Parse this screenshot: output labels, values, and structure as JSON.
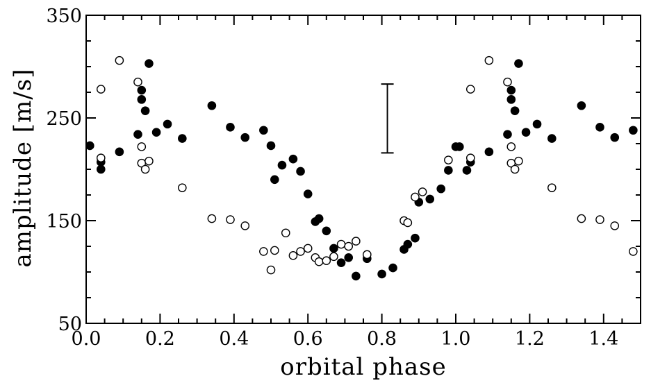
{
  "chart_data": {
    "type": "scatter",
    "title": "",
    "xlabel": "orbital phase",
    "ylabel": "amplitude [m/s]",
    "xlim": [
      0.0,
      1.5
    ],
    "ylim": [
      50,
      350
    ],
    "xticks": [
      0.0,
      0.2,
      0.4,
      0.6,
      0.8,
      1.0,
      1.2,
      1.4
    ],
    "xtick_labels": [
      "0.0",
      "0.2",
      "0.4",
      "0.6",
      "0.8",
      "1.0",
      "1.2",
      "1.4"
    ],
    "yticks": [
      50,
      150,
      250,
      350
    ],
    "ytick_labels": [
      "50",
      "150",
      "250",
      "350"
    ],
    "grid": false,
    "legend": "none",
    "series": [
      {
        "marker": "filled-circle",
        "color": "#000000",
        "points": [
          [
            0.01,
            223
          ],
          [
            0.04,
            200
          ],
          [
            0.04,
            207
          ],
          [
            0.09,
            217
          ],
          [
            0.14,
            234
          ],
          [
            0.15,
            268
          ],
          [
            0.15,
            277
          ],
          [
            0.16,
            257
          ],
          [
            0.17,
            303
          ],
          [
            0.19,
            236
          ],
          [
            0.22,
            244
          ],
          [
            0.26,
            230
          ],
          [
            0.34,
            262
          ],
          [
            0.39,
            241
          ],
          [
            0.43,
            231
          ],
          [
            0.48,
            238
          ],
          [
            0.5,
            223
          ],
          [
            0.51,
            190
          ],
          [
            0.53,
            204
          ],
          [
            0.56,
            210
          ],
          [
            0.58,
            198
          ],
          [
            0.6,
            176
          ],
          [
            0.62,
            149
          ],
          [
            0.63,
            152
          ],
          [
            0.65,
            140
          ],
          [
            0.67,
            123
          ],
          [
            0.69,
            109
          ],
          [
            0.71,
            114
          ],
          [
            0.73,
            96
          ],
          [
            0.76,
            113
          ],
          [
            0.8,
            98
          ],
          [
            0.83,
            104
          ],
          [
            0.86,
            122
          ],
          [
            0.87,
            127
          ],
          [
            0.89,
            133
          ],
          [
            0.9,
            168
          ],
          [
            0.93,
            171
          ],
          [
            0.96,
            181
          ],
          [
            0.98,
            199
          ],
          [
            1.0,
            222
          ],
          [
            1.01,
            222
          ],
          [
            1.03,
            199
          ],
          [
            1.04,
            207
          ],
          [
            1.09,
            217
          ],
          [
            1.14,
            234
          ],
          [
            1.15,
            268
          ],
          [
            1.15,
            277
          ],
          [
            1.16,
            257
          ],
          [
            1.17,
            303
          ],
          [
            1.19,
            236
          ],
          [
            1.22,
            244
          ],
          [
            1.26,
            230
          ],
          [
            1.34,
            262
          ],
          [
            1.39,
            241
          ],
          [
            1.43,
            231
          ],
          [
            1.48,
            238
          ]
        ]
      },
      {
        "marker": "open-circle",
        "color": "#000000",
        "points": [
          [
            0.04,
            211
          ],
          [
            0.04,
            278
          ],
          [
            0.09,
            306
          ],
          [
            0.14,
            285
          ],
          [
            0.15,
            222
          ],
          [
            0.15,
            206
          ],
          [
            0.16,
            200
          ],
          [
            0.17,
            208
          ],
          [
            0.26,
            182
          ],
          [
            0.34,
            152
          ],
          [
            0.39,
            151
          ],
          [
            0.43,
            145
          ],
          [
            0.48,
            120
          ],
          [
            0.5,
            102
          ],
          [
            0.51,
            121
          ],
          [
            0.54,
            138
          ],
          [
            0.56,
            116
          ],
          [
            0.58,
            120
          ],
          [
            0.6,
            123
          ],
          [
            0.62,
            114
          ],
          [
            0.63,
            110
          ],
          [
            0.65,
            111
          ],
          [
            0.67,
            115
          ],
          [
            0.69,
            127
          ],
          [
            0.71,
            125
          ],
          [
            0.73,
            130
          ],
          [
            0.76,
            117
          ],
          [
            0.86,
            150
          ],
          [
            0.87,
            148
          ],
          [
            0.89,
            173
          ],
          [
            0.91,
            178
          ],
          [
            0.98,
            209
          ],
          [
            1.04,
            211
          ],
          [
            1.04,
            278
          ],
          [
            1.09,
            306
          ],
          [
            1.14,
            285
          ],
          [
            1.15,
            222
          ],
          [
            1.15,
            206
          ],
          [
            1.16,
            200
          ],
          [
            1.17,
            208
          ],
          [
            1.26,
            182
          ],
          [
            1.34,
            152
          ],
          [
            1.39,
            151
          ],
          [
            1.43,
            145
          ],
          [
            1.48,
            120
          ]
        ]
      }
    ],
    "error_bar": {
      "x": 0.815,
      "y_low": 216,
      "y_high": 283
    }
  }
}
